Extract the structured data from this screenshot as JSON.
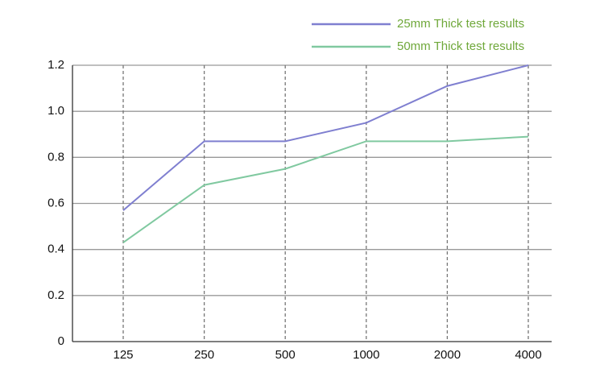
{
  "chart_data": {
    "type": "line",
    "categories": [
      "125",
      "250",
      "500",
      "1000",
      "2000",
      "4000"
    ],
    "series": [
      {
        "name": "25mm Thick test results",
        "color": "#7f7fd0",
        "values": [
          0.57,
          0.87,
          0.87,
          0.95,
          1.11,
          1.2
        ]
      },
      {
        "name": "50mm Thick test results",
        "color": "#80c9a0",
        "values": [
          0.43,
          0.68,
          0.75,
          0.87,
          0.87,
          0.89
        ]
      }
    ],
    "ylim": [
      0,
      1.2
    ],
    "yticks": [
      0,
      0.2,
      0.4,
      0.6,
      0.8,
      {
        "value": 1.0,
        "label": "1.0"
      },
      1.2
    ],
    "grid": true,
    "legend": "top-right"
  }
}
